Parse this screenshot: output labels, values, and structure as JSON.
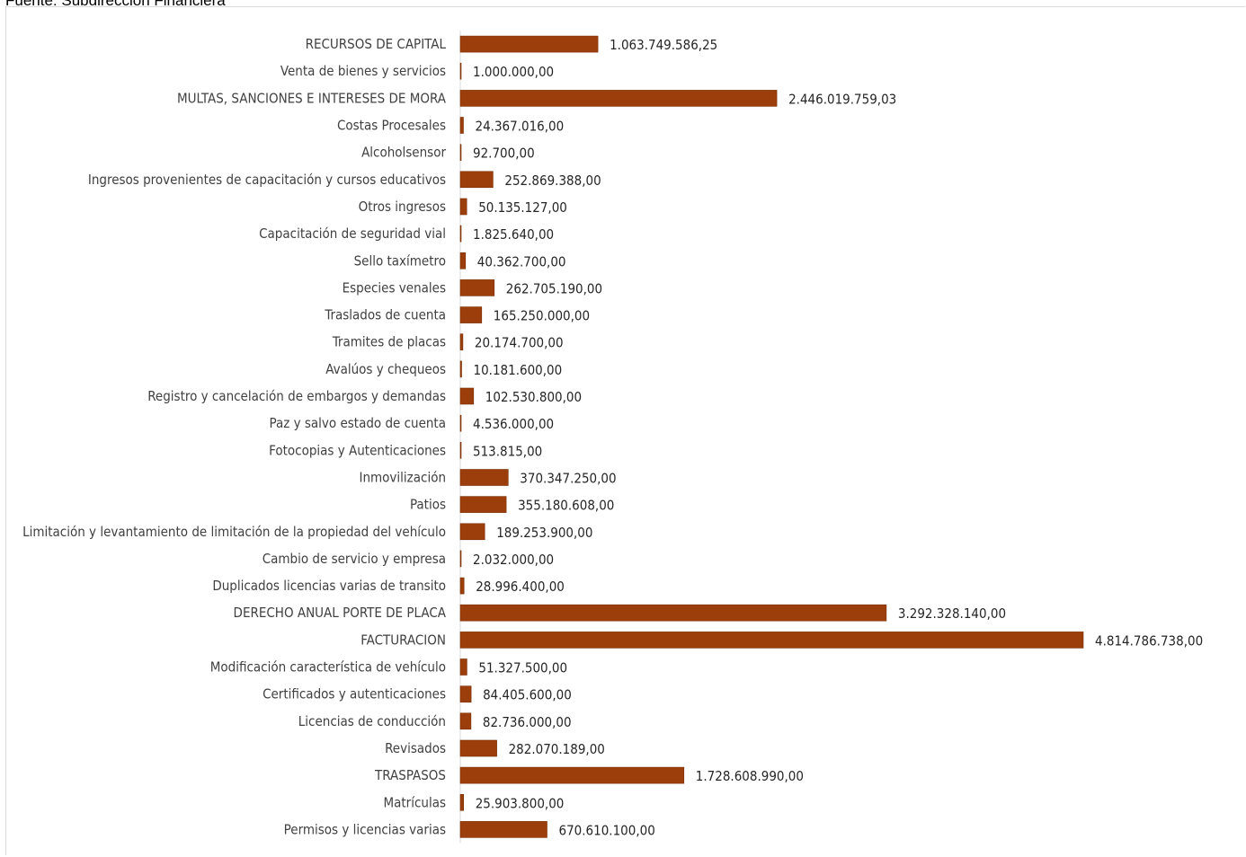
{
  "source_note": "Fuente: Subdirección Financiera",
  "colors": {
    "bar": "#9C3E0B",
    "bar_edge": "#7A2E06",
    "axis": "#d9d9d9"
  },
  "chart_data": {
    "type": "bar",
    "orientation": "horizontal",
    "title": "",
    "xlabel": "",
    "ylabel": "",
    "grid": false,
    "legend": "none",
    "categories": [
      "RECURSOS DE CAPITAL",
      "Venta de bienes y servicios",
      "MULTAS, SANCIONES E INTERESES DE MORA",
      "Costas Procesales",
      "Alcoholsensor",
      "Ingresos provenientes de capacitación y cursos educativos",
      "Otros ingresos",
      "Capacitación de seguridad vial",
      "Sello taxímetro",
      "Especies venales",
      "Traslados de cuenta",
      "Tramites de placas",
      "Avalúos y chequeos",
      "Registro y cancelación de embargos y demandas",
      "Paz y salvo estado de cuenta",
      "Fotocopias y Autenticaciones",
      "Inmovilización",
      "Patios",
      "Limitación y levantamiento de limitación de la propiedad del vehículo",
      "Cambio de servicio y empresa",
      "Duplicados licencias varias de transito",
      "DERECHO ANUAL PORTE DE PLACA",
      "FACTURACION",
      "Modificación característica de vehículo",
      "Certificados y autenticaciones",
      "Licencias de conducción",
      "Revisados",
      "TRASPASOS",
      "Matrículas",
      "Permisos y licencias varias"
    ],
    "values": [
      1063749586.25,
      1000000,
      2446019759.03,
      24367016,
      92700,
      252869388,
      50135127,
      1825640,
      40362700,
      262705190,
      165250000,
      20174700,
      10181600,
      102530800,
      4536000,
      513815,
      370347250,
      355180608,
      189253900,
      2032000,
      28996400,
      3292328140,
      4814786738,
      51327500,
      84405600,
      82736000,
      282070189,
      1728608990,
      25903800,
      670610100
    ],
    "value_labels": [
      "1.063.749.586,25",
      "1.000.000,00",
      "2.446.019.759,03",
      "24.367.016,00",
      "92.700,00",
      "252.869.388,00",
      "50.135.127,00",
      "1.825.640,00",
      "40.362.700,00",
      "262.705.190,00",
      "165.250.000,00",
      "20.174.700,00",
      "10.181.600,00",
      "102.530.800,00",
      "4.536.000,00",
      "513.815,00",
      "370.347.250,00",
      "355.180.608,00",
      "189.253.900,00",
      "2.032.000,00",
      "28.996.400,00",
      "3.292.328.140,00",
      "4.814.786.738,00",
      "51.327.500,00",
      "84.405.600,00",
      "82.736.000,00",
      "282.070.189,00",
      "1.728.608.990,00",
      "25.903.800,00",
      "670.610.100,00"
    ]
  }
}
